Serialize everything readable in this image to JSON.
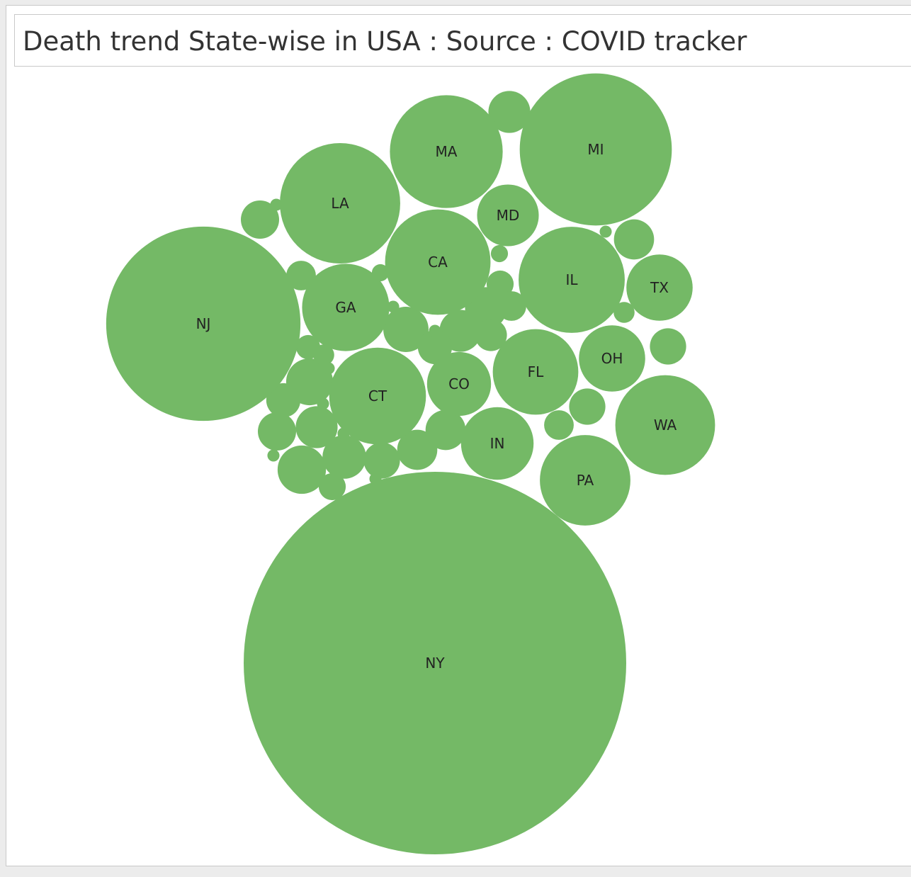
{
  "title": "Death trend State-wise in USA : Source : COVID tracker",
  "chart_data": {
    "type": "packed-bubble",
    "title": "Death trend State-wise in USA : Source : COVID tracker",
    "measure": "Deaths (relative, proportional to bubble area)",
    "color": "#74b966",
    "labeled_bubbles": [
      {
        "label": "NY",
        "value": 100
      },
      {
        "label": "NJ",
        "value": 25.8
      },
      {
        "label": "MI",
        "value": 15.8
      },
      {
        "label": "MA",
        "value": 8.7
      },
      {
        "label": "LA",
        "value": 9.9
      },
      {
        "label": "CA",
        "value": 7.6
      },
      {
        "label": "IL",
        "value": 7.7
      },
      {
        "label": "PA",
        "value": 5.6
      },
      {
        "label": "GA",
        "value": 5.2
      },
      {
        "label": "CT",
        "value": 6.4
      },
      {
        "label": "FL",
        "value": 5.0
      },
      {
        "label": "WA",
        "value": 6.8
      },
      {
        "label": "IN",
        "value": 3.6
      },
      {
        "label": "OH",
        "value": 3.0
      },
      {
        "label": "TX",
        "value": 3.0
      },
      {
        "label": "CO",
        "value": 2.8
      },
      {
        "label": "MD",
        "value": 2.6
      }
    ],
    "unlabeled_bubble_values": [
      1.2,
      1.0,
      1.1,
      0.9,
      1.4,
      1.2,
      1.5,
      1.2,
      1.0,
      1.6,
      1.3,
      0.9,
      1.1,
      0.9,
      0.6,
      1.1,
      0.5,
      0.8,
      1.2,
      0.6,
      0.5,
      0.7,
      0.4,
      0.6,
      0.8,
      0.3,
      0.2,
      0.3,
      0.1,
      0.2,
      0.1,
      0.1,
      0.1,
      0.1,
      0.1,
      0.1,
      0.1,
      0.1
    ]
  }
}
